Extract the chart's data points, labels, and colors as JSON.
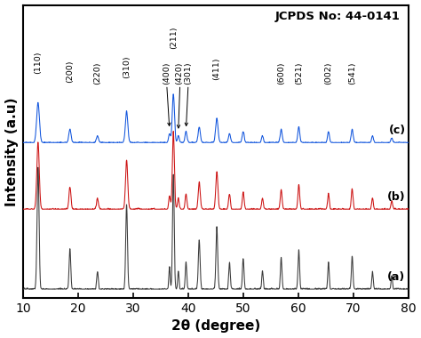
{
  "title": "JCPDS No: 44-0141",
  "xlabel": "2θ (degree)",
  "ylabel": "Intensity (a.u)",
  "xlim": [
    10,
    80
  ],
  "x_ticks": [
    10,
    20,
    30,
    40,
    50,
    60,
    70,
    80
  ],
  "colors": {
    "a": "#3a3a3a",
    "b": "#cc1111",
    "c": "#1155dd"
  },
  "background_color": "#ffffff",
  "border_color": "#000000",
  "annotations": [
    {
      "label": "(110)",
      "x": 12.7,
      "has_arrow": false
    },
    {
      "label": "(200)",
      "x": 18.5,
      "has_arrow": false
    },
    {
      "label": "(220)",
      "x": 23.5,
      "has_arrow": false
    },
    {
      "label": "(310)",
      "x": 28.8,
      "has_arrow": false
    },
    {
      "label": "(400)",
      "x": 36.6,
      "has_arrow": true
    },
    {
      "label": "(211)",
      "x": 37.3,
      "has_arrow": false
    },
    {
      "label": "(420)",
      "x": 38.2,
      "has_arrow": true
    },
    {
      "label": "(301)",
      "x": 39.6,
      "has_arrow": true
    },
    {
      "label": "(411)",
      "x": 45.2,
      "has_arrow": false
    },
    {
      "label": "(600)",
      "x": 56.9,
      "has_arrow": false
    },
    {
      "label": "(521)",
      "x": 60.1,
      "has_arrow": false
    },
    {
      "label": "(002)",
      "x": 65.5,
      "has_arrow": false
    },
    {
      "label": "(541)",
      "x": 69.8,
      "has_arrow": false
    }
  ]
}
